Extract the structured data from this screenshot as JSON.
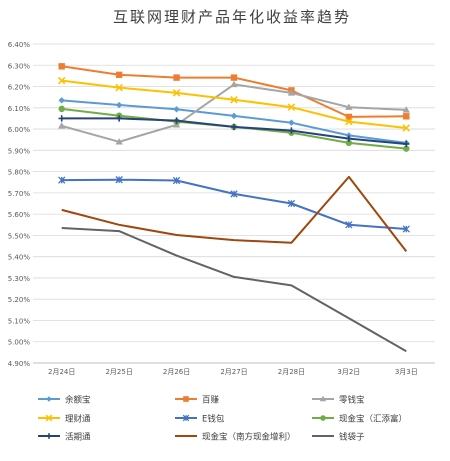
{
  "chart_data": {
    "type": "line",
    "title": "互联网理财产品年化收益率趋势",
    "categories": [
      "2月24日",
      "2月25日",
      "2月26日",
      "2月27日",
      "2月28日",
      "3月2日",
      "3月3日"
    ],
    "ylim": [
      4.9,
      6.4
    ],
    "ystep": 0.1,
    "y_tick_labels": [
      "4.90%",
      "5.00%",
      "5.10%",
      "5.20%",
      "5.30%",
      "5.40%",
      "5.50%",
      "5.60%",
      "5.70%",
      "5.80%",
      "5.90%",
      "6.00%",
      "6.10%",
      "6.20%",
      "6.30%",
      "6.40%"
    ],
    "grid": true,
    "legend_position": "bottom",
    "series": [
      {
        "name": "余额宝",
        "color": "#5b9bd5",
        "marker": "diamond",
        "values": [
          6.135,
          6.113,
          6.093,
          6.062,
          6.03,
          5.97,
          5.935
        ]
      },
      {
        "name": "百赚",
        "color": "#ed7d31",
        "marker": "square",
        "values": [
          6.295,
          6.255,
          6.242,
          6.242,
          6.182,
          6.057,
          6.06
        ]
      },
      {
        "name": "零钱宝",
        "color": "#a5a5a5",
        "marker": "triangle",
        "values": [
          6.015,
          5.94,
          6.02,
          6.21,
          6.17,
          6.103,
          6.09
        ]
      },
      {
        "name": "理财通",
        "color": "#ffc000",
        "marker": "x",
        "values": [
          6.228,
          6.195,
          6.17,
          6.138,
          6.103,
          6.035,
          6.005
        ]
      },
      {
        "name": "E钱包",
        "color": "#4472c4",
        "marker": "star",
        "values": [
          5.76,
          5.762,
          5.758,
          5.695,
          5.65,
          5.55,
          5.53
        ]
      },
      {
        "name": "现金宝（汇添富）",
        "color": "#70ad47",
        "marker": "circle",
        "values": [
          6.095,
          6.063,
          6.035,
          6.01,
          5.983,
          5.935,
          5.908
        ]
      },
      {
        "name": "活期通",
        "color": "#264478",
        "marker": "plus",
        "values": [
          6.05,
          6.05,
          6.04,
          6.01,
          5.993,
          5.955,
          5.93
        ]
      },
      {
        "name": "现金宝（南方现金增利）",
        "color": "#9e480e",
        "marker": "none",
        "values": [
          5.62,
          5.55,
          5.502,
          5.478,
          5.465,
          5.775,
          5.425
        ]
      },
      {
        "name": "钱袋子",
        "color": "#636363",
        "marker": "none",
        "values": [
          5.535,
          5.52,
          5.405,
          5.305,
          5.265,
          5.11,
          4.955
        ]
      }
    ]
  }
}
